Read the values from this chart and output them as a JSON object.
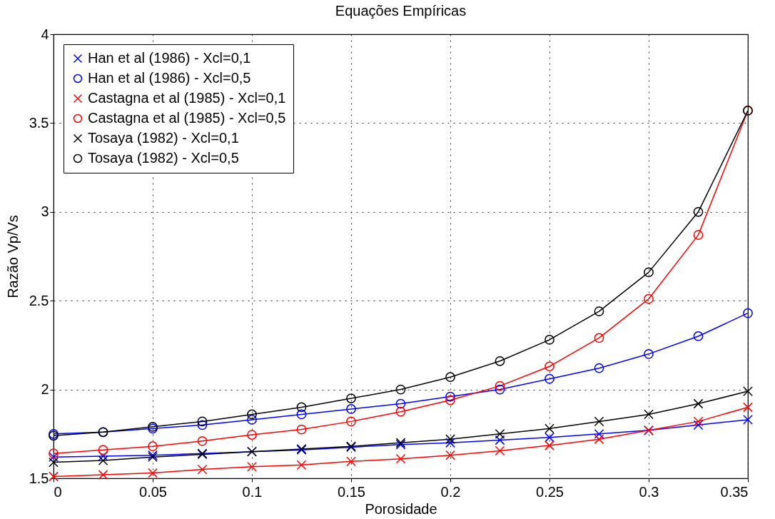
{
  "chart_data": {
    "type": "line",
    "title": "Equações Empíricas",
    "xlabel": "Porosidade",
    "ylabel": "Razão Vp/Vs",
    "x": [
      0,
      0.025,
      0.05,
      0.075,
      0.1,
      0.125,
      0.15,
      0.175,
      0.2,
      0.225,
      0.25,
      0.275,
      0.3,
      0.325,
      0.35
    ],
    "series": [
      {
        "name": "Han et al (1986) - Xcl=0,1",
        "color": "#0000ff",
        "marker": "cross",
        "values": [
          1.62,
          1.625,
          1.63,
          1.64,
          1.65,
          1.66,
          1.675,
          1.69,
          1.7,
          1.715,
          1.73,
          1.75,
          1.77,
          1.8,
          1.83
        ]
      },
      {
        "name": "Han et al (1986) - Xcl=0,5",
        "color": "#0000ff",
        "marker": "circle",
        "values": [
          1.75,
          1.76,
          1.78,
          1.8,
          1.83,
          1.86,
          1.89,
          1.92,
          1.96,
          2.0,
          2.06,
          2.12,
          2.2,
          2.3,
          2.43
        ]
      },
      {
        "name": "Castagna et al (1985) - Xcl=0,1",
        "color": "#ff0000",
        "marker": "cross",
        "values": [
          1.51,
          1.52,
          1.53,
          1.55,
          1.565,
          1.575,
          1.595,
          1.61,
          1.63,
          1.655,
          1.685,
          1.72,
          1.77,
          1.82,
          1.9
        ]
      },
      {
        "name": "Castagna et al (1985) - Xcl=0,5",
        "color": "#ff0000",
        "marker": "circle",
        "values": [
          1.64,
          1.66,
          1.68,
          1.71,
          1.745,
          1.775,
          1.82,
          1.875,
          1.94,
          2.02,
          2.13,
          2.29,
          2.51,
          2.87,
          3.57
        ]
      },
      {
        "name": "Tosaya (1982) - Xcl=0,1",
        "color": "#000000",
        "marker": "cross",
        "values": [
          1.59,
          1.6,
          1.62,
          1.635,
          1.65,
          1.665,
          1.68,
          1.7,
          1.72,
          1.75,
          1.78,
          1.82,
          1.86,
          1.92,
          1.99
        ]
      },
      {
        "name": "Tosaya (1982) - Xcl=0,5",
        "color": "#000000",
        "marker": "circle",
        "values": [
          1.74,
          1.76,
          1.79,
          1.82,
          1.86,
          1.9,
          1.95,
          2.0,
          2.07,
          2.16,
          2.28,
          2.44,
          2.66,
          3.0,
          3.57
        ]
      }
    ],
    "xlim": [
      0,
      0.35
    ],
    "xticks": [
      0,
      0.05,
      0.1,
      0.15,
      0.2,
      0.25,
      0.3,
      0.35
    ],
    "ylim": [
      1.5,
      4
    ],
    "yticks": [
      1.5,
      2,
      2.5,
      3,
      3.5,
      4
    ],
    "grid": true,
    "legend": "top left",
    "line_style": "solid"
  }
}
